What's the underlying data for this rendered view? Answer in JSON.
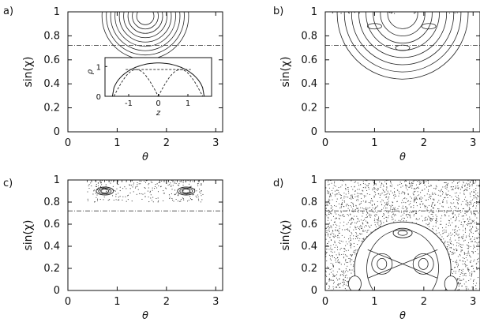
{
  "chart_data": [
    {
      "type": "scatter",
      "panel_label": "a)",
      "xlabel": "θ",
      "ylabel": "sin(χ)",
      "xlim": [
        0,
        3.14
      ],
      "ylim": [
        0,
        1
      ],
      "xticks": [
        "0",
        "1",
        "2",
        "3"
      ],
      "yticks": [
        "0",
        "0.2",
        "0.4",
        "0.6",
        "0.8",
        "1"
      ],
      "dashed_line_y": 0.72,
      "inset": {
        "type": "line",
        "xlabel": "z",
        "ylabel": "ρ",
        "xticks": [
          "-1",
          "0",
          "1"
        ],
        "yticks": [
          "0",
          "1"
        ]
      }
    },
    {
      "type": "scatter",
      "panel_label": "b)",
      "xlabel": "θ",
      "ylabel": "sin(χ)",
      "xlim": [
        0,
        3.14
      ],
      "ylim": [
        0,
        1
      ],
      "xticks": [
        "0",
        "1",
        "2",
        "3"
      ],
      "yticks": [
        "0",
        "0.2",
        "0.4",
        "0.6",
        "0.8",
        "1"
      ],
      "dashed_line_y": 0.72
    },
    {
      "type": "scatter",
      "panel_label": "c)",
      "xlabel": "θ",
      "ylabel": "sin(χ)",
      "xlim": [
        0,
        3.14
      ],
      "ylim": [
        0,
        1
      ],
      "xticks": [
        "0",
        "1",
        "2",
        "3"
      ],
      "yticks": [
        "0",
        "0.2",
        "0.4",
        "0.6",
        "0.8",
        "1"
      ],
      "dashed_line_y": 0.72
    },
    {
      "type": "scatter",
      "panel_label": "d)",
      "xlabel": "θ",
      "ylabel": "sin(χ)",
      "xlim": [
        0,
        3.14
      ],
      "ylim": [
        0,
        1
      ],
      "xticks": [
        "0",
        "1",
        "2",
        "3"
      ],
      "yticks": [
        "0",
        "0.2",
        "0.4",
        "0.6",
        "0.8",
        "1"
      ],
      "dashed_line_y": 0.72
    }
  ]
}
